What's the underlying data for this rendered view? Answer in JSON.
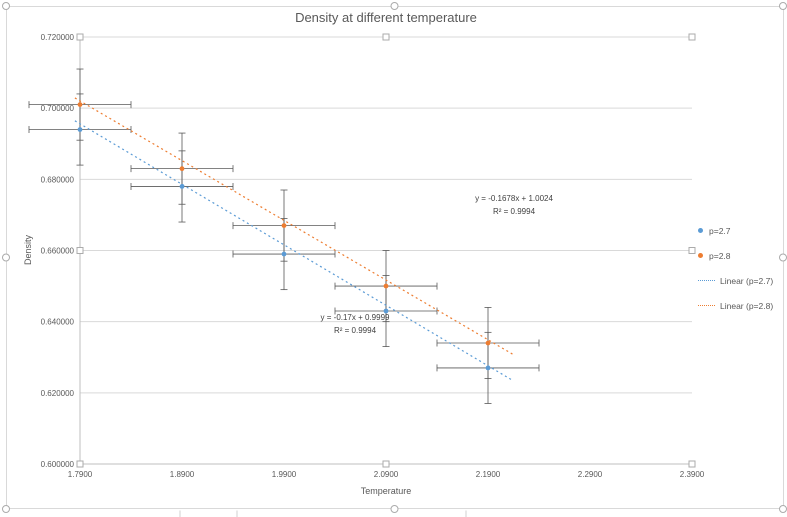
{
  "chart_data": {
    "type": "scatter",
    "title": "Density at different temperature",
    "xlabel": "Temperature",
    "ylabel": "Density",
    "xlim": [
      1.79,
      2.39
    ],
    "ylim": [
      0.6,
      0.72
    ],
    "x_tick_values": [
      1.79,
      1.89,
      1.99,
      2.09,
      2.19,
      2.29,
      2.39
    ],
    "x_ticks": [
      "1.7900",
      "1.8900",
      "1.9900",
      "2.0900",
      "2.1900",
      "2.2900",
      "2.3900"
    ],
    "y_tick_values": [
      0.6,
      0.62,
      0.64,
      0.66,
      0.68,
      0.7,
      0.72
    ],
    "y_ticks": [
      "0.600000",
      "0.620000",
      "0.640000",
      "0.660000",
      "0.680000",
      "0.700000",
      "0.720000"
    ],
    "grid": "horizontal",
    "legend_position": "right",
    "series": [
      {
        "name": "p=2.7",
        "color": "#5B9BD5",
        "x": [
          1.79,
          1.89,
          1.99,
          2.09,
          2.19
        ],
        "y": [
          0.694,
          0.678,
          0.659,
          0.643,
          0.627
        ],
        "x_error": 0.05,
        "y_error": 0.01
      },
      {
        "name": "p=2.8",
        "color": "#ED7D31",
        "x": [
          1.79,
          1.89,
          1.99,
          2.09,
          2.19
        ],
        "y": [
          0.701,
          0.683,
          0.667,
          0.65,
          0.634
        ],
        "x_error": 0.05,
        "y_error": 0.01
      }
    ],
    "trendlines": [
      {
        "name": "Linear (p=2.7)",
        "color": "#5B9BD5",
        "slope": -0.17,
        "intercept": 0.9999,
        "x_start": 1.785,
        "x_end": 2.215,
        "equation": "y = -0.17x + 0.9999",
        "r_squared": "R² = 0.9994"
      },
      {
        "name": "Linear (p=2.8)",
        "color": "#ED7D31",
        "slope": -0.1678,
        "intercept": 1.0024,
        "x_start": 1.785,
        "x_end": 2.215,
        "equation": "y = -0.1678x + 1.0024",
        "r_squared": "R² = 0.9994"
      }
    ]
  },
  "legend": {
    "items": [
      {
        "label": "p=2.7",
        "marker": "dot",
        "color": "#5B9BD5"
      },
      {
        "label": "p=2.8",
        "marker": "dot",
        "color": "#ED7D31"
      },
      {
        "label": "Linear (p=2.7)",
        "marker": "dotted-line",
        "color": "#5B9BD5"
      },
      {
        "label": "Linear (p=2.8)",
        "marker": "dotted-line",
        "color": "#ED7D31"
      }
    ]
  },
  "colors": {
    "title_text": "#595959",
    "axis_line": "#BFBFBF",
    "gridline": "#D9D9D9",
    "error_bar": "#595959",
    "frame_border": "#D9D9D9",
    "handle_stroke": "#ABABAB"
  }
}
